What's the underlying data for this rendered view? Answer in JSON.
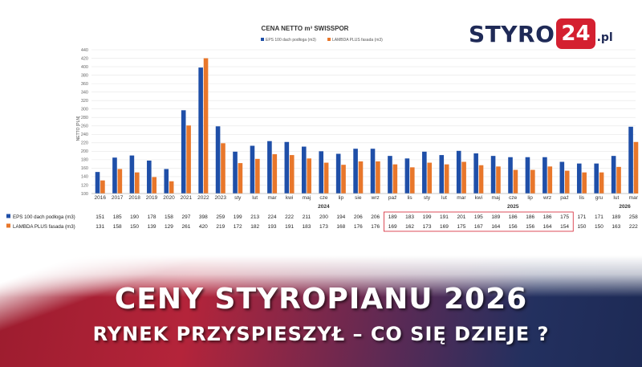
{
  "headline": {
    "line1": "CENY STYROPIANU 2026",
    "line2": "RYNEK PRZYSPIESZYŁ – CO SIĘ DZIEJE ?"
  },
  "logo": {
    "name": "STYRO",
    "number": "24",
    "domain": ".pl"
  },
  "colors": {
    "series1": "#1f4fa8",
    "series2": "#e8772b",
    "accent_red": "#d42030",
    "brand_navy": "#1f2a57"
  },
  "chart_data": {
    "type": "bar",
    "title": "CENA NETTO m³ SWISSPOR",
    "ylabel": "NETTO [PLN]",
    "ylim": [
      100,
      440
    ],
    "yticks": [
      100,
      120,
      140,
      160,
      180,
      200,
      220,
      240,
      260,
      280,
      300,
      320,
      340,
      360,
      380,
      400,
      420,
      440
    ],
    "grid": true,
    "legend_position": "top",
    "categories": [
      "2016",
      "2017",
      "2018",
      "2019",
      "2020",
      "2021",
      "2022",
      "2023",
      "sty",
      "lut",
      "mar",
      "kwi",
      "maj",
      "cze",
      "lip",
      "sie",
      "wrz",
      "paź",
      "lis",
      "sty",
      "lut",
      "mar",
      "kwi",
      "maj",
      "cze",
      "lip",
      "wrz",
      "paź",
      "lis",
      "gru",
      "lut",
      "mar"
    ],
    "year_labels": [
      {
        "label": "2024",
        "start": 8,
        "end": 18
      },
      {
        "label": "2025",
        "start": 19,
        "end": 29
      },
      {
        "label": "2026",
        "start": 30,
        "end": 31
      }
    ],
    "series": [
      {
        "name": "EPS 100 dach podłoga (m3)",
        "values": [
          151,
          185,
          190,
          178,
          158,
          297,
          398,
          259,
          199,
          213,
          224,
          222,
          211,
          200,
          194,
          206,
          206,
          189,
          183,
          199,
          191,
          201,
          195,
          189,
          186,
          186,
          186,
          175,
          171,
          171,
          189,
          258
        ]
      },
      {
        "name": "LAMBDA PLUS fasada (m3)",
        "values": [
          131,
          158,
          150,
          139,
          129,
          261,
          420,
          219,
          172,
          182,
          193,
          191,
          183,
          173,
          168,
          176,
          176,
          169,
          162,
          173,
          169,
          175,
          167,
          164,
          156,
          156,
          164,
          154,
          150,
          150,
          163,
          222
        ]
      }
    ],
    "highlighted_range": {
      "start": 17,
      "end": 27
    }
  }
}
